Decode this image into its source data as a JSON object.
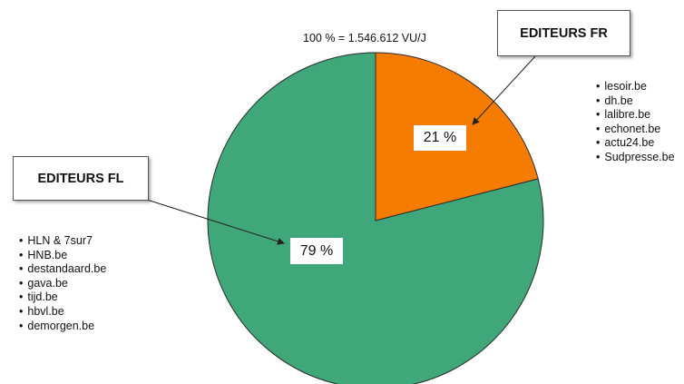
{
  "chart_data": {
    "type": "pie",
    "total_label": "100 % = 1.546.612 VU/J",
    "slices": [
      {
        "name": "EDITEURS FR",
        "value": 21,
        "label": "21 %",
        "color": "#f57c00",
        "sites": [
          "lesoir.be",
          "dh.be",
          "lalibre.be",
          "echonet.be",
          "actu24.be",
          "Sudpresse.be"
        ]
      },
      {
        "name": "EDITEURS FL",
        "value": 79,
        "label": "79 %",
        "color": "#3fa77a",
        "sites": [
          "HLN & 7sur7",
          "HNB.be",
          "destandaard.be",
          "gava.be",
          "tijd.be",
          "hbvl.be",
          "demorgen.be"
        ]
      }
    ]
  }
}
